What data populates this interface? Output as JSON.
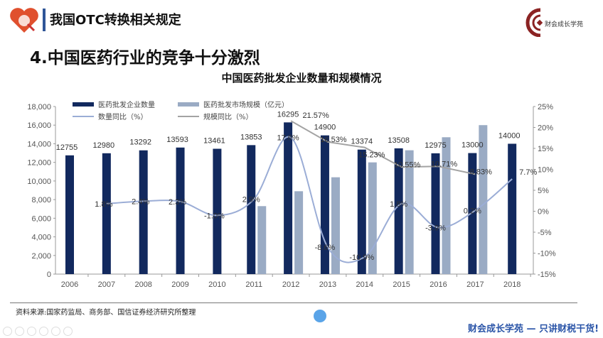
{
  "header": {
    "title": "我国OTC转换相关规定",
    "logo_text": "财会成长学苑"
  },
  "section_title": "4.中国医药行业的竞争十分激烈",
  "chart_data": {
    "type": "bar+line",
    "title": "中国医药批发企业数量和规模情况",
    "categories": [
      "2006",
      "2007",
      "2008",
      "2009",
      "2010",
      "2011",
      "2012",
      "2013",
      "2014",
      "2015",
      "2016",
      "2017",
      "2018"
    ],
    "series": [
      {
        "name": "医药批发企业数量",
        "kind": "bar",
        "axis": "left",
        "color": "#12295e",
        "values": [
          12755,
          12980,
          13292,
          13593,
          13461,
          13853,
          16295,
          14900,
          13374,
          13508,
          12975,
          13000,
          14000
        ],
        "labels": [
          "12755",
          "12980",
          "13292",
          "13593",
          "13461",
          "13853",
          "16295",
          "14900",
          "13374",
          "13508",
          "12975",
          "13000",
          "14000"
        ]
      },
      {
        "name": "医药批发市场规模（亿元）",
        "kind": "bar",
        "axis": "left",
        "color": "#9aabc4",
        "values": [
          null,
          null,
          null,
          null,
          null,
          7300,
          8900,
          10400,
          12000,
          13300,
          14700,
          16000,
          null
        ]
      },
      {
        "name": "数量同比（%）",
        "kind": "line",
        "axis": "right",
        "color": "#9badd6",
        "values": [
          null,
          1.8,
          2.4,
          2.3,
          -1.0,
          2.9,
          17.6,
          -8.6,
          -10.9,
          1.8,
          -3.9,
          0.2,
          7.7
        ],
        "labels": [
          null,
          "1.8%",
          "2.4%",
          "2.3%",
          "-1.0%",
          "2.9%",
          "17.6%",
          "-8.6%",
          "-10.9%",
          "1.8%",
          "-3.9%",
          "0.2%",
          "7.7%"
        ]
      },
      {
        "name": "规模同比（%）",
        "kind": "line",
        "axis": "right",
        "color": "#a3a3a3",
        "values": [
          null,
          null,
          null,
          null,
          null,
          null,
          21.57,
          16.53,
          15.23,
          10.55,
          10.71,
          8.83,
          null
        ],
        "labels": [
          null,
          null,
          null,
          null,
          null,
          null,
          "21.57%",
          "16.53%",
          "15.23%",
          "10.55%",
          "10.71%",
          "8.83%",
          null
        ]
      }
    ],
    "left_axis": {
      "range": [
        0,
        18000
      ],
      "ticks": [
        "0",
        "2,000",
        "4,000",
        "6,000",
        "8,000",
        "10,000",
        "12,000",
        "14,000",
        "16,000",
        "18,000"
      ]
    },
    "right_axis": {
      "range": [
        -15,
        25
      ],
      "ticks": [
        "-15%",
        "-10%",
        "-5%",
        "0%",
        "5%",
        "10%",
        "15%",
        "20%",
        "25%"
      ]
    },
    "legend_position": "top",
    "grid": false
  },
  "footer": {
    "source": "资料来源:国家药监局、商务部、国信证券经济研究所整理",
    "slogan": "财会成长学苑 — 只讲财税干货!"
  }
}
